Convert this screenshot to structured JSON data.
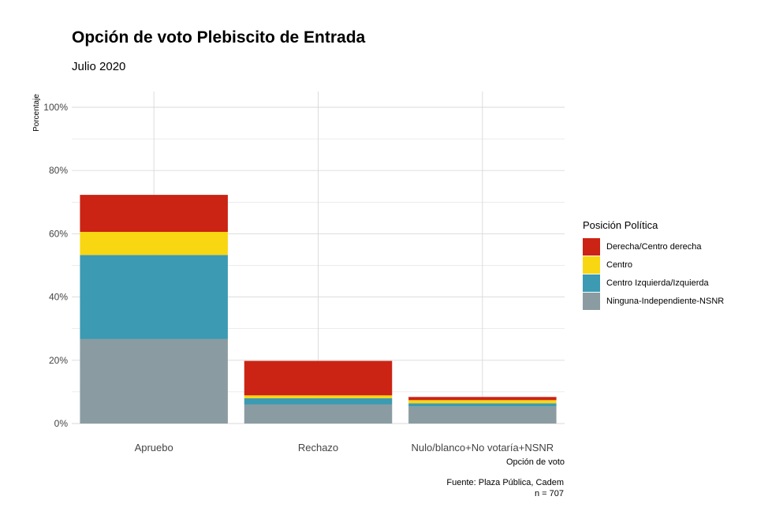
{
  "title": "Opción de voto Plebiscito de Entrada",
  "subtitle": "Julio 2020",
  "caption": [
    "Fuente: Plaza Pública, Cadem",
    "n = 707"
  ],
  "chart_data": {
    "type": "bar",
    "stacked": true,
    "categories": [
      "Apruebo",
      "Rechazo",
      "Nulo/blanco+No votaría+NSNR"
    ],
    "series": [
      {
        "name": "Ninguna-Independiente-NSNR",
        "color": "#8A9CA1",
        "values": [
          26.7,
          6.0,
          5.4
        ]
      },
      {
        "name": "Centro Izquierda/Izquierda",
        "color": "#3C9AB2",
        "values": [
          26.6,
          2.0,
          1.0
        ]
      },
      {
        "name": "Centro",
        "color": "#F9D612",
        "values": [
          7.3,
          0.9,
          1.0
        ]
      },
      {
        "name": "Derecha/Centro derecha",
        "color": "#CB2314",
        "values": [
          11.7,
          10.9,
          1.0
        ]
      }
    ],
    "legend_order": [
      "Derecha/Centro derecha",
      "Centro",
      "Centro Izquierda/Izquierda",
      "Ninguna-Independiente-NSNR"
    ],
    "xlabel": "Opción de voto",
    "ylabel": "Porcentaje",
    "ylim": [
      0,
      100
    ],
    "yticks": [
      "0%",
      "20%",
      "40%",
      "60%",
      "80%",
      "100%"
    ],
    "legend_title": "Posición Política",
    "legend_position": "right",
    "grid": true
  }
}
